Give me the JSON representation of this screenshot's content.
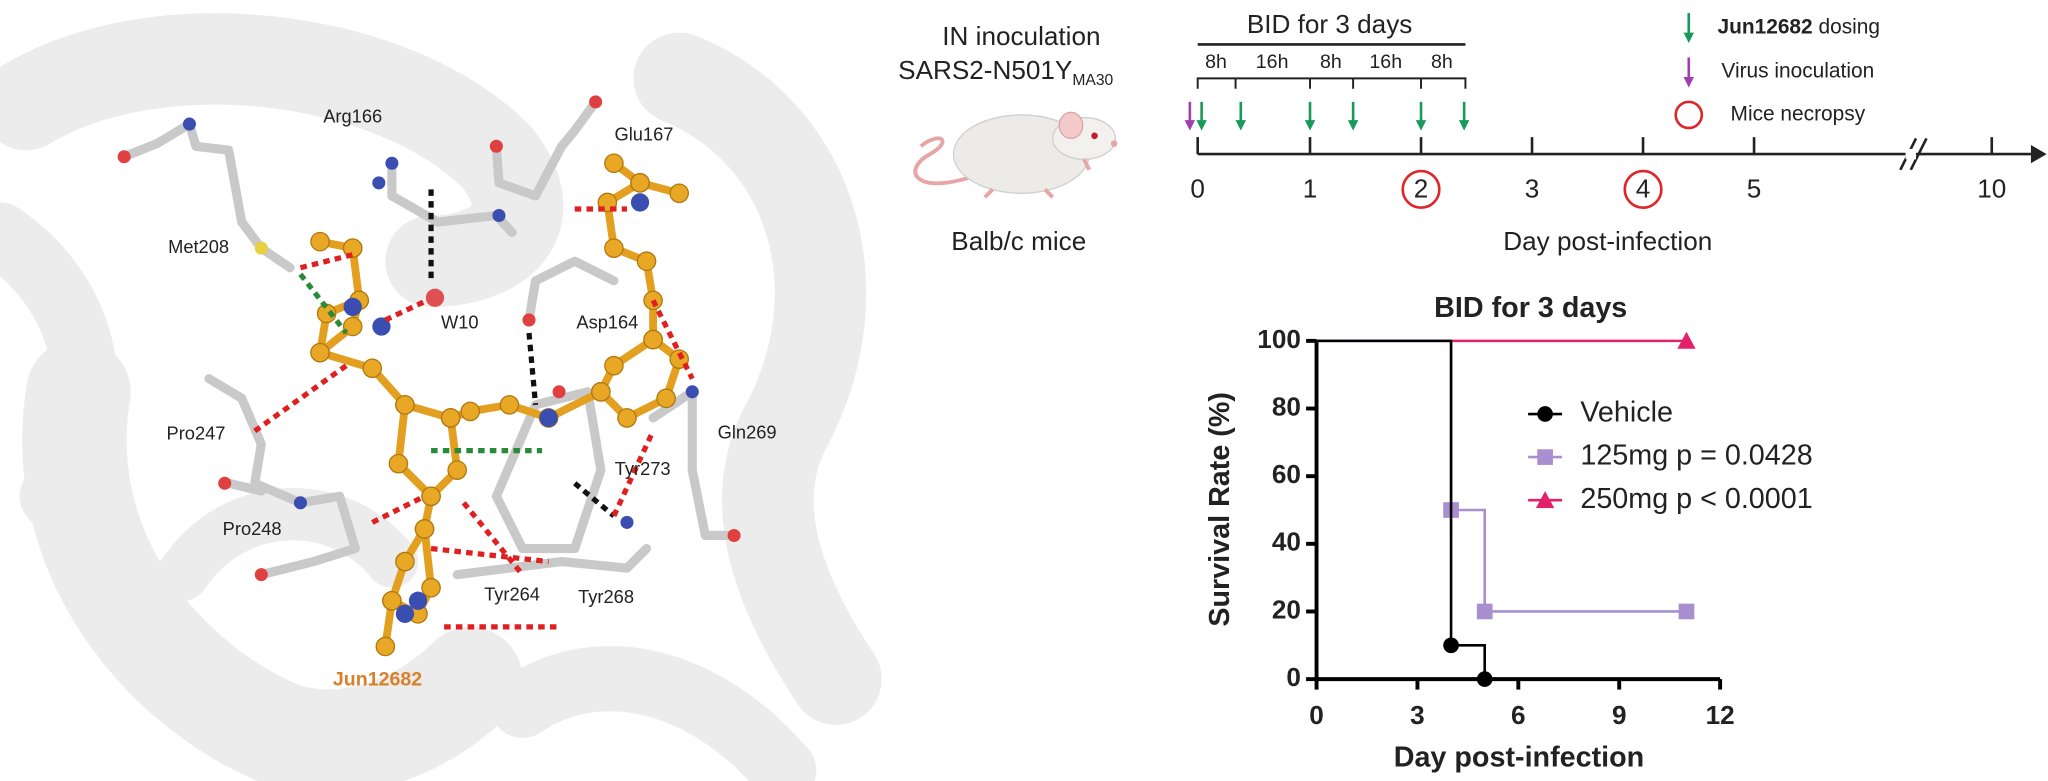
{
  "docking": {
    "labels": [
      "Arg166",
      "Glu167",
      "Met208",
      "W10",
      "Asp164",
      "Pro247",
      "Gln269",
      "Tyr273",
      "Pro248",
      "Tyr264",
      "Tyr268"
    ],
    "ligand": "Jun12682"
  },
  "schedule": {
    "route": "IN inoculation",
    "strain": "SARS2-N501Y",
    "strain_subscript": "MA30",
    "animal": "Balb/c mice",
    "regimen": "BID for 3 days",
    "intervals": [
      "8h",
      "16h",
      "8h",
      "16h",
      "8h"
    ],
    "legend": {
      "drug": "Jun12682",
      "dosing": "dosing",
      "virus": "Virus inoculation",
      "necropsy": "Mice necropsy"
    },
    "day_ticks": [
      0,
      1,
      2,
      3,
      4,
      5,
      10
    ],
    "axis_label": "Day post-infection"
  },
  "chart_data": {
    "type": "step",
    "title": "BID for 3 days",
    "x_label": "Day post-infection",
    "y_label": "Survival Rate (%)",
    "xlim": [
      0,
      12
    ],
    "xticks": [
      0,
      3,
      6,
      9,
      12
    ],
    "ylim": [
      0,
      100
    ],
    "yticks": [
      0,
      20,
      40,
      60,
      80,
      100
    ],
    "legend": "right",
    "series": [
      {
        "name": "Vehicle",
        "color": "#000000",
        "marker": "circle",
        "x": [
          0,
          4,
          5
        ],
        "values": [
          100,
          10,
          0
        ]
      },
      {
        "name": "125mg p = 0.0428",
        "color": "#a98fd0",
        "marker": "square",
        "x": [
          0,
          4,
          5,
          11
        ],
        "values": [
          100,
          50,
          20,
          20
        ]
      },
      {
        "name": "250mg p < 0.0001",
        "color": "#e5206a",
        "marker": "triangle",
        "x": [
          0,
          11
        ],
        "values": [
          100,
          100
        ]
      }
    ]
  }
}
